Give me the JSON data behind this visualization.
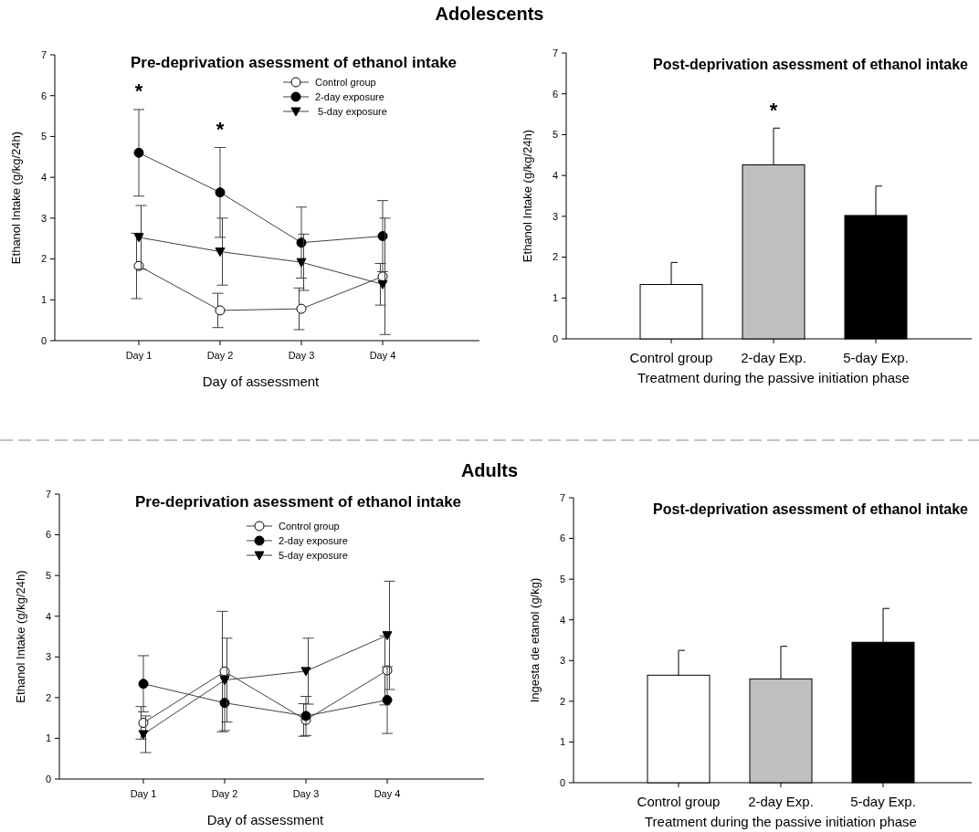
{
  "chart_data": [
    {
      "type": "line",
      "title": "Pre-deprivation asessment of ethanol intake",
      "xlabel": "Day of assessment",
      "ylabel": "Ethanol Intake (g/kg/24h)",
      "categories": [
        "Day 1",
        "Day 2",
        "Day 3",
        "Day 4"
      ],
      "ylim": [
        0,
        7
      ],
      "yticks": [
        0,
        1,
        2,
        3,
        4,
        5,
        6,
        7
      ],
      "grid": false,
      "legend": "top right",
      "annotations": [
        "Adolescents",
        "*",
        "*"
      ],
      "series": [
        {
          "name": "Control group",
          "color": "#ffffff",
          "marker": "circle",
          "values": [
            1.83,
            0.74,
            0.78,
            1.57
          ],
          "errors": [
            0.8,
            0.42,
            0.51,
            [
              0.87,
              1.89
            ]
          ]
        },
        {
          "name": "2-day exposure",
          "color": "#000000",
          "marker": "circle",
          "values": [
            4.6,
            3.63,
            2.4,
            2.56
          ],
          "errors": [
            1.06,
            1.1,
            0.87,
            0.87
          ]
        },
        {
          "name": " 5-day exposure",
          "color": "#000000",
          "marker": "triangle",
          "values": [
            2.53,
            2.18,
            1.92,
            1.38
          ],
          "errors": [
            0.78,
            0.82,
            0.69,
            [
              0.15,
              3.0
            ]
          ]
        }
      ]
    },
    {
      "type": "bar",
      "title": "Post-deprivation asessment of ethanol intake",
      "xlabel": "Treatment during the passive initiation phase",
      "ylabel": "Ethanol Intake (g/kg/24h)",
      "categories": [
        "Control group",
        "2-day Exp.",
        "5-day Exp."
      ],
      "values": [
        1.33,
        4.26,
        3.02
      ],
      "colors": [
        "#ffffff",
        "#c0c0c0",
        "#000000"
      ],
      "errors": [
        [
          1.33,
          1.87
        ],
        [
          4.26,
          5.16
        ],
        [
          3.02,
          3.74
        ]
      ],
      "ylim": [
        0,
        7
      ],
      "yticks": [
        0,
        1,
        2,
        3,
        4,
        5,
        6,
        7
      ],
      "grid": false,
      "annotations": [
        "*"
      ]
    },
    {
      "type": "line",
      "title": "Pre-deprivation asessment of ethanol intake",
      "xlabel": "Day of assessment",
      "ylabel": "Ethanol Intake (g/kg/24h)",
      "categories": [
        "Day 1",
        "Day 2",
        "Day 3",
        "Day 4"
      ],
      "ylim": [
        0,
        7
      ],
      "yticks": [
        0,
        1,
        2,
        3,
        4,
        5,
        6,
        7
      ],
      "grid": false,
      "legend": "top",
      "annotations": [
        "Adults"
      ],
      "series": [
        {
          "name": "Control group",
          "color": "#ffffff",
          "marker": "circle",
          "values": [
            1.38,
            2.64,
            1.45,
            2.67
          ],
          "errors": [
            0.4,
            1.48,
            0.4,
            0.85
          ]
        },
        {
          "name": "2-day exposure",
          "color": "#000000",
          "marker": "circle",
          "values": [
            2.34,
            1.87,
            1.55,
            1.94
          ],
          "errors": [
            0.69,
            0.68,
            0.48,
            0.82
          ]
        },
        {
          "name": "5-day exposure",
          "color": "#000000",
          "marker": "triangle",
          "values": [
            1.1,
            2.43,
            2.65,
            3.53
          ],
          "errors": [
            0.45,
            1.03,
            0.81,
            1.33
          ]
        }
      ]
    },
    {
      "type": "bar",
      "title": "Post-deprivation asessment of ethanol intake",
      "xlabel": "Treatment during the passive initiation phase",
      "ylabel": "Ingesta de etanol (g/kg)",
      "categories": [
        "Control group",
        "2-day Exp.",
        "5-day Exp."
      ],
      "values": [
        2.64,
        2.55,
        3.45
      ],
      "colors": [
        "#ffffff",
        "#c0c0c0",
        "#000000"
      ],
      "errors": [
        [
          2.64,
          3.25
        ],
        [
          2.55,
          3.35
        ],
        [
          3.45,
          4.28
        ]
      ],
      "ylim": [
        0,
        7
      ],
      "yticks": [
        0,
        1,
        2,
        3,
        4,
        5,
        6,
        7
      ],
      "grid": false
    }
  ]
}
